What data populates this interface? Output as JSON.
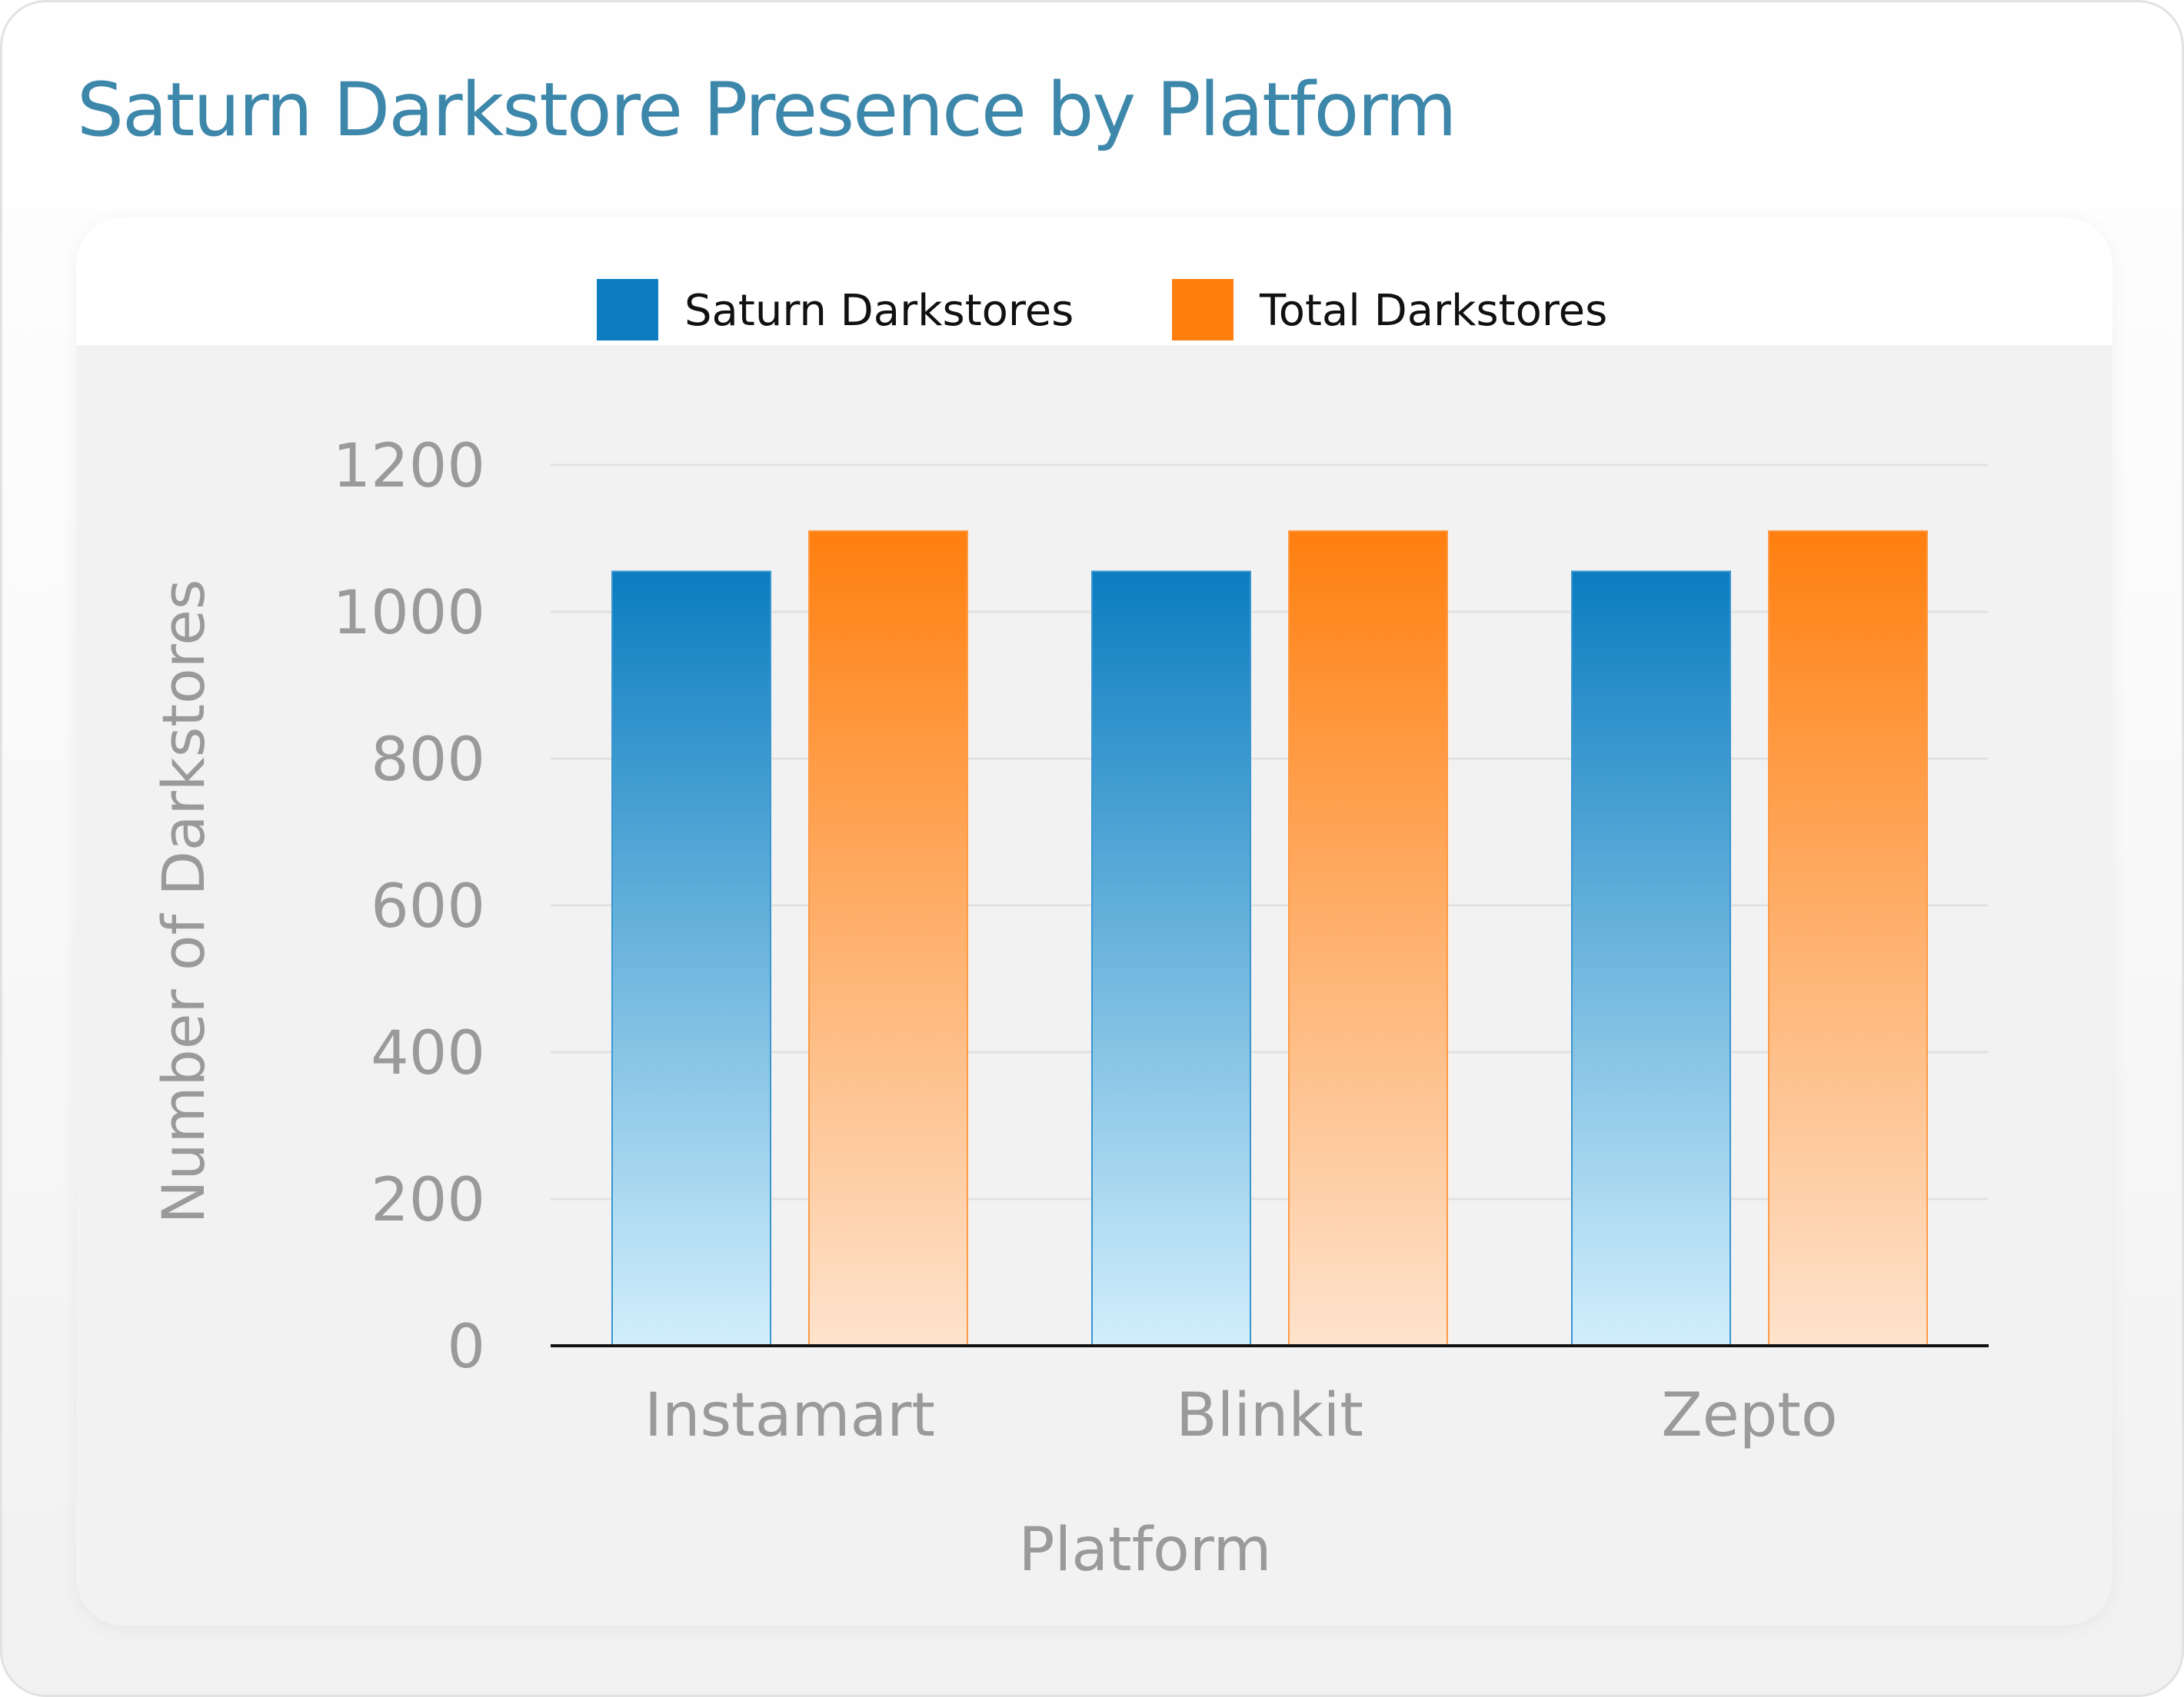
{
  "title": "Saturn Darkstore Presence by Platform",
  "colors": {
    "title": "#3d87ab",
    "saturn": "#0b7dc0",
    "saturn_light": "#d2effc",
    "total": "#ff7f0f",
    "total_light": "#fee3cd",
    "tick_text": "#9a9a9a",
    "grid": "#e2e2e2",
    "axis": "#111111"
  },
  "chart_data": {
    "type": "bar",
    "title": "Saturn Darkstore Presence by Platform",
    "xlabel": "Platform",
    "ylabel": "Number of Darkstores",
    "categories": [
      "Instamart",
      "Blinkit",
      "Zepto"
    ],
    "series": [
      {
        "name": "Saturn Darkstores",
        "values": [
          1055,
          1055,
          1055
        ],
        "color": "#0b7dc0"
      },
      {
        "name": "Total Darkstores",
        "values": [
          1110,
          1110,
          1110
        ],
        "color": "#ff7f0f"
      }
    ],
    "ylim": [
      0,
      1200
    ],
    "yticks": [
      0,
      200,
      400,
      600,
      800,
      1000,
      1200
    ],
    "grid": true,
    "legend": "top-center"
  }
}
